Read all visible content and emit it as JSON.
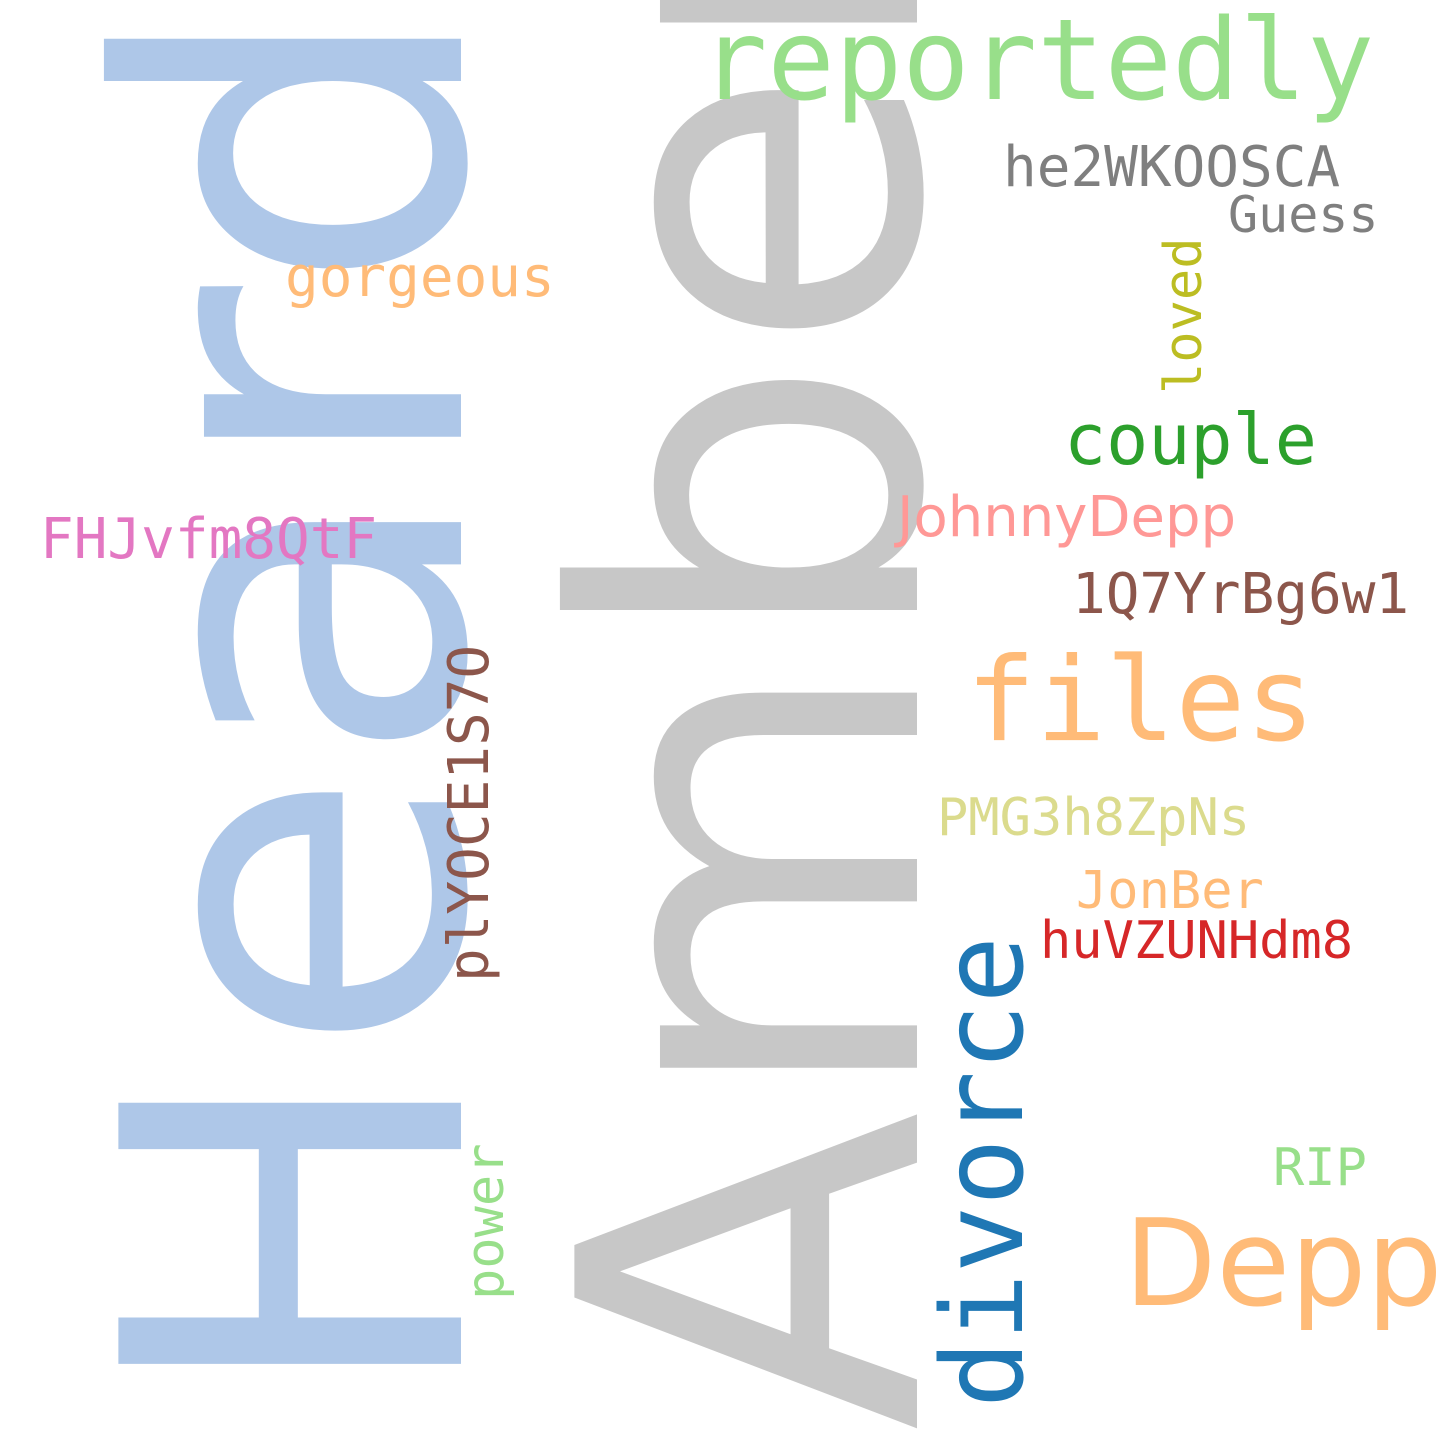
{
  "cloud": {
    "words": {
      "heard": {
        "text": "Heard",
        "color": "#aec7e8",
        "orientation": "vertical"
      },
      "amber": {
        "text": "Amber",
        "color": "#c7c7c7",
        "orientation": "vertical"
      },
      "reportedly": {
        "text": "reportedly",
        "color": "#98df8a",
        "orientation": "horizontal"
      },
      "he2": {
        "text": "he2WKOOSCA",
        "color": "#7f7f7f",
        "orientation": "horizontal"
      },
      "guess": {
        "text": "Guess",
        "color": "#7f7f7f",
        "orientation": "horizontal"
      },
      "gorgeous": {
        "text": "gorgeous",
        "color": "#ffbb78",
        "orientation": "horizontal"
      },
      "loved": {
        "text": "loved",
        "color": "#bcbd22",
        "orientation": "vertical"
      },
      "couple": {
        "text": "couple",
        "color": "#2ca02c",
        "orientation": "horizontal"
      },
      "johnny": {
        "text": "JohnnyDepp",
        "color": "#ff9896",
        "orientation": "horizontal"
      },
      "fhj": {
        "text": "FHJvfm8QtF",
        "color": "#e377c2",
        "orientation": "horizontal"
      },
      "q7": {
        "text": "1Q7YrBg6w1",
        "color": "#8c564b",
        "orientation": "horizontal"
      },
      "files": {
        "text": "files",
        "color": "#ffbb78",
        "orientation": "horizontal"
      },
      "ply": {
        "text": "plYOCE1S7O",
        "color": "#8c564b",
        "orientation": "vertical"
      },
      "pmg": {
        "text": "PMG3h8ZpNs",
        "color": "#dbdb8d",
        "orientation": "horizontal"
      },
      "jonber": {
        "text": "JonBer",
        "color": "#ffbb78",
        "orientation": "horizontal"
      },
      "hu": {
        "text": "huVZUNHdm8",
        "color": "#d62728",
        "orientation": "horizontal"
      },
      "divorce": {
        "text": "divorce",
        "color": "#1f77b4",
        "orientation": "vertical"
      },
      "power": {
        "text": "power",
        "color": "#98df8a",
        "orientation": "vertical"
      },
      "rip": {
        "text": "RIP",
        "color": "#98df8a",
        "orientation": "horizontal"
      },
      "depp": {
        "text": "Depp",
        "color": "#ffbb78",
        "orientation": "horizontal"
      }
    }
  }
}
